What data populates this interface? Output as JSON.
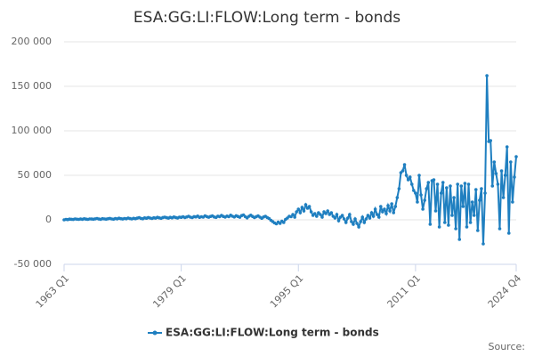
{
  "chart_data": {
    "type": "line",
    "title": "ESA:GG:LI:FLOW:Long term - bonds",
    "source": "Source:",
    "categories": [
      "1963 Q1",
      null,
      null,
      null,
      null,
      null,
      null,
      null,
      null,
      null,
      null,
      null,
      null,
      null,
      null,
      null,
      null,
      null,
      null,
      null,
      null,
      null,
      null,
      null,
      null,
      null,
      null,
      null,
      null,
      null,
      null,
      null,
      null,
      null,
      null,
      null,
      null,
      null,
      null,
      null,
      null,
      null,
      null,
      null,
      null,
      null,
      null,
      null,
      null,
      null,
      null,
      null,
      null,
      null,
      null,
      null,
      null,
      null,
      null,
      null,
      null,
      null,
      null,
      null,
      "1979 Q1",
      null,
      null,
      null,
      null,
      null,
      null,
      null,
      null,
      null,
      null,
      null,
      null,
      null,
      null,
      null,
      null,
      null,
      null,
      null,
      null,
      null,
      null,
      null,
      null,
      null,
      null,
      null,
      null,
      null,
      null,
      null,
      null,
      null,
      null,
      null,
      null,
      null,
      null,
      null,
      null,
      null,
      null,
      null,
      null,
      null,
      null,
      null,
      null,
      null,
      null,
      null,
      null,
      null,
      null,
      null,
      null,
      null,
      null,
      null,
      null,
      null,
      null,
      null,
      "1995 Q1",
      null,
      null,
      null,
      null,
      null,
      null,
      null,
      null,
      null,
      null,
      null,
      null,
      null,
      null,
      null,
      null,
      null,
      null,
      null,
      null,
      null,
      null,
      null,
      null,
      null,
      null,
      null,
      null,
      null,
      null,
      null,
      null,
      null,
      null,
      null,
      null,
      null,
      null,
      null,
      null,
      null,
      null,
      null,
      null,
      null,
      null,
      null,
      null,
      null,
      null,
      null,
      null,
      null,
      null,
      null,
      null,
      null,
      null,
      null,
      null,
      null,
      null,
      null,
      "2011 Q1",
      null,
      null,
      null,
      null,
      null,
      null,
      null,
      null,
      null,
      null,
      null,
      null,
      null,
      null,
      null,
      null,
      null,
      null,
      null,
      null,
      null,
      null,
      null,
      null,
      null,
      null,
      null,
      null,
      null,
      null,
      null,
      null,
      null,
      null,
      null,
      null,
      null,
      null,
      null,
      null,
      null,
      null,
      null,
      null,
      null,
      null,
      null,
      null,
      null,
      null,
      null,
      null,
      null,
      null,
      "2024 Q4"
    ],
    "series": [
      {
        "name": "ESA:GG:LI:FLOW:Long term - bonds",
        "color": "#1f7fc0",
        "values": [
          0,
          500,
          300,
          800,
          600,
          400,
          1000,
          700,
          500,
          900,
          600,
          1200,
          800,
          500,
          1000,
          900,
          700,
          1100,
          1500,
          900,
          600,
          1300,
          1000,
          800,
          1200,
          1600,
          1000,
          700,
          1400,
          1100,
          1800,
          1300,
          900,
          1500,
          1200,
          2000,
          1400,
          1000,
          1700,
          1300,
          1900,
          2500,
          1600,
          1200,
          2200,
          1800,
          2600,
          2000,
          1500,
          2300,
          1900,
          2800,
          2200,
          1700,
          2600,
          3000,
          2400,
          1900,
          2800,
          2300,
          3200,
          2600,
          2100,
          3000,
          2800,
          3500,
          2600,
          3200,
          4000,
          3000,
          2500,
          3600,
          3300,
          4200,
          2800,
          3500,
          3000,
          4500,
          3600,
          2900,
          3800,
          4400,
          3200,
          2700,
          4100,
          3600,
          5000,
          3800,
          3100,
          4200,
          3500,
          5200,
          4000,
          3200,
          4600,
          3800,
          2900,
          4800,
          5500,
          3600,
          2200,
          4000,
          5200,
          3800,
          2500,
          3600,
          4400,
          3000,
          1800,
          3200,
          4000,
          2600,
          1500,
          -500,
          -2000,
          -3500,
          -4500,
          -2500,
          -4000,
          -1500,
          -3000,
          500,
          2000,
          4000,
          3500,
          6000,
          3000,
          9000,
          12000,
          8000,
          14000,
          10000,
          17000,
          13000,
          15000,
          9000,
          5000,
          7000,
          4000,
          8000,
          6000,
          3000,
          9000,
          7000,
          10000,
          6000,
          8000,
          4000,
          2000,
          6000,
          -1000,
          3000,
          5000,
          1000,
          -3000,
          2000,
          6000,
          -2000,
          -5000,
          1000,
          -4000,
          -8000,
          -2000,
          3000,
          -3000,
          1000,
          5000,
          2000,
          8000,
          4000,
          12000,
          6000,
          3000,
          15000,
          9000,
          12000,
          7000,
          16000,
          10000,
          18000,
          8000,
          15000,
          25000,
          35000,
          53000,
          55000,
          62000,
          50000,
          45000,
          48000,
          40000,
          33000,
          30000,
          20000,
          50000,
          28000,
          12000,
          22000,
          35000,
          42000,
          -5000,
          44000,
          45000,
          10000,
          40000,
          -8000,
          30000,
          42000,
          -3000,
          36000,
          -6000,
          38000,
          5000,
          25000,
          -10000,
          40000,
          -22000,
          38000,
          15000,
          41000,
          -8000,
          40000,
          -3000,
          20000,
          5000,
          34000,
          -12000,
          22000,
          35000,
          -27000,
          30000,
          162000,
          88000,
          89000,
          38000,
          65000,
          52000,
          40000,
          -10000,
          55000,
          25000,
          50000,
          82000,
          -15000,
          65000,
          20000,
          48000,
          71000
        ]
      }
    ],
    "ylim": [
      -50000,
      200000
    ],
    "yticks": [
      {
        "value": -50000,
        "label": "-50 000"
      },
      0,
      {
        "value": 50000,
        "label": "50 000"
      },
      {
        "value": 100000,
        "label": "100 000"
      },
      {
        "value": 150000,
        "label": "150 000"
      },
      {
        "value": 200000,
        "label": "200 000"
      }
    ],
    "grid": true
  }
}
